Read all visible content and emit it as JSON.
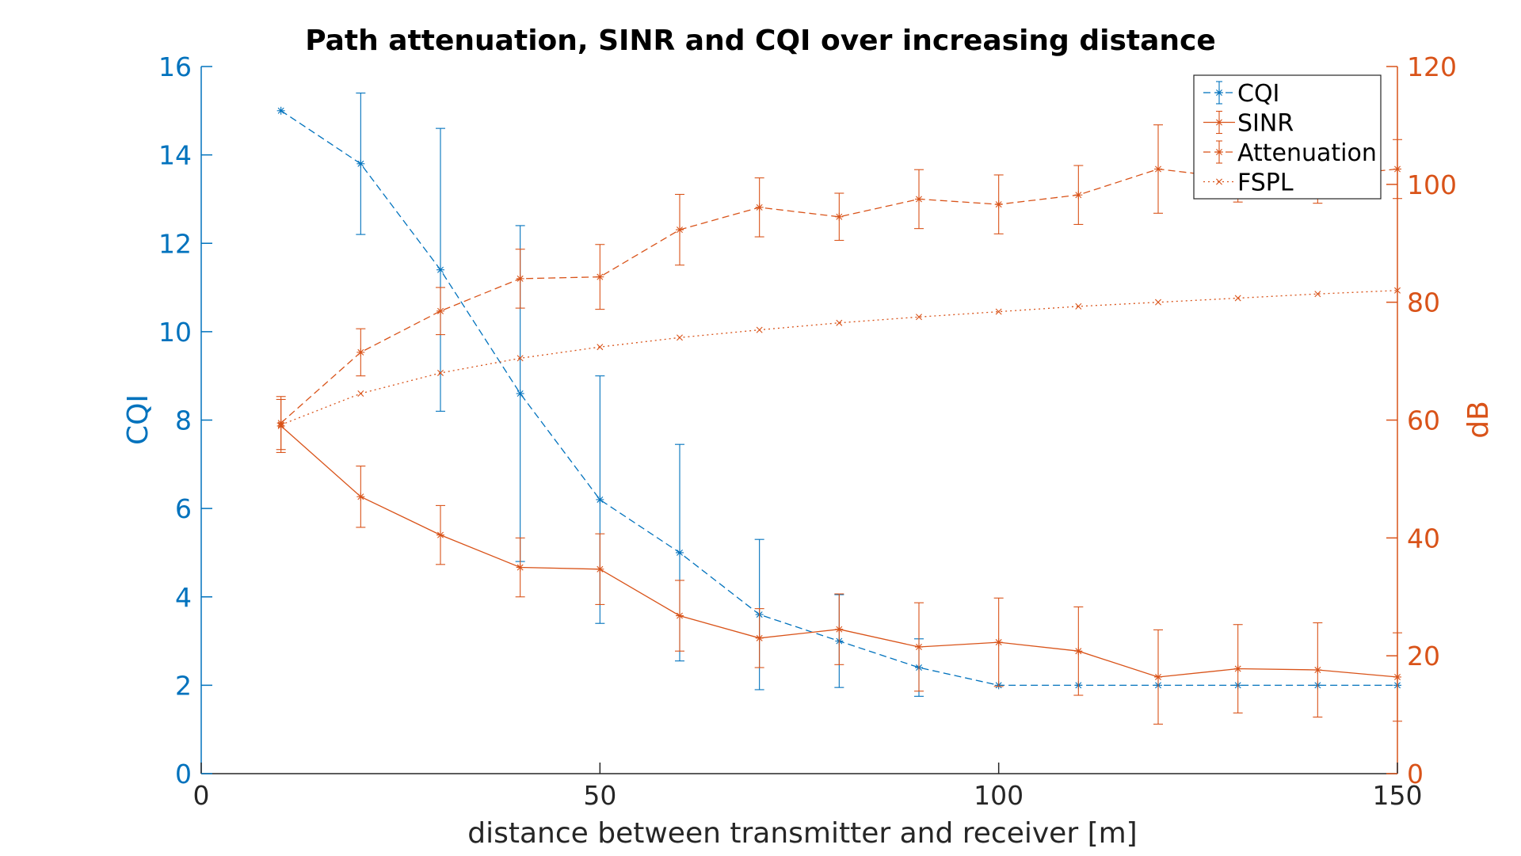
{
  "chart_data": {
    "type": "line",
    "title": "Path attenuation, SINR and CQI over increasing distance",
    "xlabel": "distance between transmitter and receiver [m]",
    "ylabel_left": "CQI",
    "ylabel_right": "dB",
    "xlim": [
      0,
      150
    ],
    "ylim_left": [
      0,
      16
    ],
    "ylim_right": [
      0,
      120
    ],
    "xticks": [
      "0",
      "50",
      "100",
      "150"
    ],
    "yticks_left": [
      "0",
      "2",
      "4",
      "6",
      "8",
      "10",
      "12",
      "14",
      "16"
    ],
    "yticks_right": [
      "0",
      "20",
      "40",
      "60",
      "80",
      "100",
      "120"
    ],
    "grid": false,
    "legend_position": "top-right",
    "colors": {
      "left_axis": "#0072BD",
      "right_axis": "#D95319",
      "axes_dark": "#262626"
    },
    "x": [
      10,
      20,
      30,
      40,
      50,
      60,
      70,
      80,
      90,
      100,
      110,
      120,
      130,
      140,
      150
    ],
    "series": [
      {
        "name": "CQI",
        "axis": "left",
        "color": "#0072BD",
        "line_style": "dashed",
        "marker": "asterisk",
        "values": [
          15.0,
          13.8,
          11.4,
          8.6,
          6.2,
          5.0,
          3.6,
          3.0,
          2.4,
          2.0,
          2.0,
          2.0,
          2.0,
          2.0,
          2.0
        ],
        "error": [
          0,
          1.6,
          3.2,
          3.8,
          2.8,
          2.45,
          1.7,
          1.05,
          0.65,
          0,
          0,
          0,
          0,
          0,
          0
        ]
      },
      {
        "name": "SINR",
        "axis": "right",
        "color": "#D95319",
        "line_style": "solid",
        "marker": "asterisk",
        "values": [
          59,
          47,
          40.5,
          35,
          34.7,
          26.8,
          23,
          24.5,
          21.5,
          22.3,
          20.8,
          16.4,
          17.8,
          17.6,
          16.4
        ],
        "error": [
          4.5,
          5.2,
          5.0,
          5.0,
          6.0,
          6.0,
          5.0,
          6.0,
          7.5,
          7.5,
          7.5,
          8.0,
          7.5,
          8.0,
          7.5
        ]
      },
      {
        "name": "Attenuation",
        "axis": "right",
        "color": "#D95319",
        "line_style": "dashed",
        "marker": "asterisk",
        "values": [
          59.5,
          71.5,
          78.5,
          84,
          84.3,
          92.3,
          96.1,
          94.5,
          97.5,
          96.6,
          98.2,
          102.6,
          101,
          101.3,
          102.6
        ],
        "error": [
          4.5,
          4.0,
          4.0,
          5.0,
          5.5,
          6.0,
          5.0,
          4.0,
          5.0,
          5.0,
          5.0,
          7.5,
          4.0,
          4.5,
          5.0
        ]
      },
      {
        "name": "FSPL",
        "axis": "right",
        "color": "#D95319",
        "line_style": "dotted",
        "marker": "x",
        "values": [
          59.2,
          64.5,
          68,
          70.5,
          72.4,
          74,
          75.3,
          76.5,
          77.5,
          78.4,
          79.3,
          80,
          80.7,
          81.4,
          82
        ]
      }
    ]
  }
}
